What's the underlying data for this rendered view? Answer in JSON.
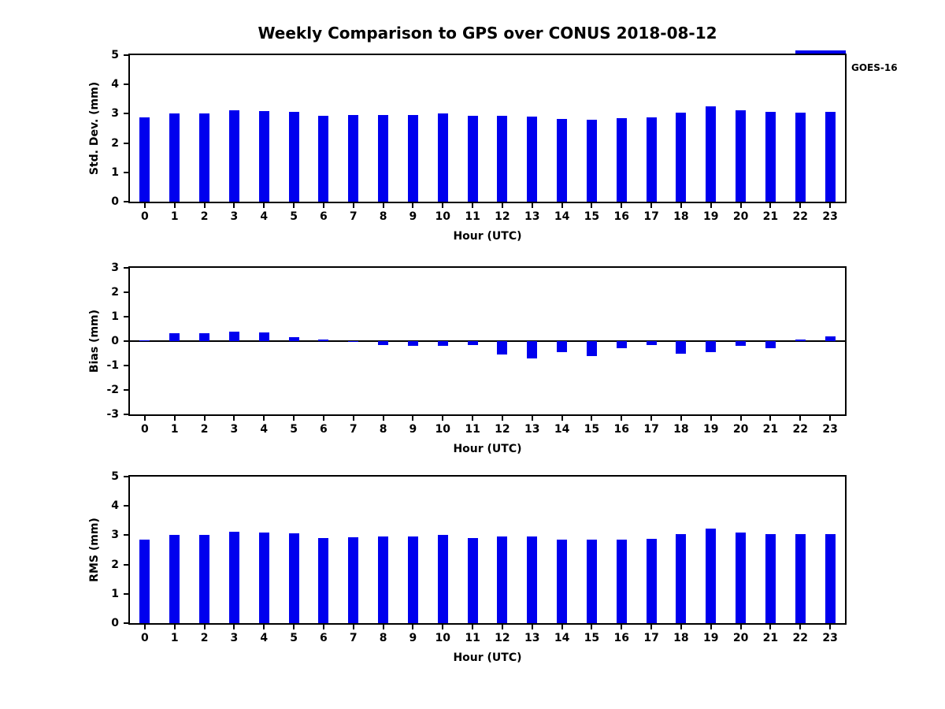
{
  "title": "Weekly Comparison to GPS over CONUS 2018-08-12",
  "legend": {
    "label": "GOES-16",
    "color": "#0000ee",
    "position": "top-right"
  },
  "chart_data": [
    {
      "type": "bar",
      "title": "",
      "ylabel": "Std. Dev. (mm)",
      "xlabel": "Hour (UTC)",
      "ylim": [
        0,
        5
      ],
      "yticks": [
        0,
        1,
        2,
        3,
        4,
        5
      ],
      "grid": false,
      "series_name": "GOES-16",
      "categories": [
        "0",
        "1",
        "2",
        "3",
        "4",
        "5",
        "6",
        "7",
        "8",
        "9",
        "10",
        "11",
        "12",
        "13",
        "14",
        "15",
        "16",
        "17",
        "18",
        "19",
        "20",
        "21",
        "22",
        "23"
      ],
      "values": [
        2.87,
        3.0,
        3.0,
        3.12,
        3.08,
        3.06,
        2.93,
        2.95,
        2.95,
        2.97,
        3.01,
        2.93,
        2.93,
        2.9,
        2.83,
        2.79,
        2.84,
        2.87,
        3.04,
        3.24,
        3.11,
        3.06,
        3.03,
        3.06
      ]
    },
    {
      "type": "bar",
      "title": "",
      "ylabel": "Bias (mm)",
      "xlabel": "Hour (UTC)",
      "ylim": [
        -3,
        3
      ],
      "yticks": [
        -3,
        -2,
        -1,
        0,
        1,
        2,
        3
      ],
      "grid": false,
      "series_name": "GOES-16",
      "categories": [
        "0",
        "1",
        "2",
        "3",
        "4",
        "5",
        "6",
        "7",
        "8",
        "9",
        "10",
        "11",
        "12",
        "13",
        "14",
        "15",
        "16",
        "17",
        "18",
        "19",
        "20",
        "21",
        "22",
        "23"
      ],
      "values": [
        0.03,
        0.32,
        0.32,
        0.4,
        0.35,
        0.15,
        0.05,
        0.0,
        -0.15,
        -0.2,
        -0.18,
        -0.15,
        -0.55,
        -0.7,
        -0.45,
        -0.6,
        -0.3,
        -0.15,
        -0.5,
        -0.45,
        -0.2,
        -0.3,
        0.05,
        0.2
      ]
    },
    {
      "type": "bar",
      "title": "",
      "ylabel": "RMS (mm)",
      "xlabel": "Hour (UTC)",
      "ylim": [
        0,
        5
      ],
      "yticks": [
        0,
        1,
        2,
        3,
        4,
        5
      ],
      "grid": false,
      "series_name": "GOES-16",
      "categories": [
        "0",
        "1",
        "2",
        "3",
        "4",
        "5",
        "6",
        "7",
        "8",
        "9",
        "10",
        "11",
        "12",
        "13",
        "14",
        "15",
        "16",
        "17",
        "18",
        "19",
        "20",
        "21",
        "22",
        "23"
      ],
      "values": [
        2.85,
        3.0,
        3.0,
        3.12,
        3.08,
        3.06,
        2.9,
        2.93,
        2.95,
        2.97,
        3.0,
        2.9,
        2.97,
        2.97,
        2.85,
        2.84,
        2.85,
        2.88,
        3.05,
        3.23,
        3.08,
        3.05,
        3.03,
        3.04
      ]
    }
  ]
}
